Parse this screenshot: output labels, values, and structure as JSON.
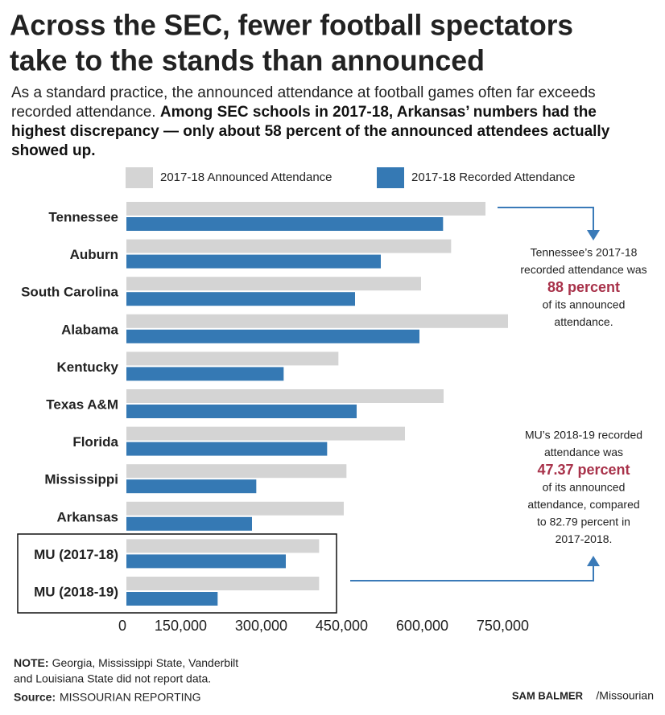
{
  "chart_data": {
    "type": "barh",
    "title": [
      "Across the SEC, fewer football spectators",
      "take to the stands than announced"
    ],
    "subtitle": "As a standard practice, the announced attendance at football games often far exceeds recorded attendance.",
    "subtitle_bold": "Among SEC schools in 2017-18, Arkansas’ numbers had the highest discrepancy — only about 58 percent of the announced attendees actually showed up.",
    "categories": [
      "Tennessee",
      "Auburn",
      "South Carolina",
      "Alabama",
      "Kentucky",
      "Texas A&M",
      "Florida",
      "Mississippi",
      "Arkansas",
      "MU (2017-18)",
      "MU (2018-19)"
    ],
    "series": [
      {
        "name": "2017-18 Announced Attendance",
        "color": "#d4d4d4",
        "values": [
          669000,
          605000,
          549000,
          711000,
          395000,
          591000,
          519000,
          410000,
          405000,
          359000,
          359000
        ]
      },
      {
        "name": "2017-18 Recorded Attendance",
        "color": "#3579b4",
        "values": [
          590000,
          474000,
          426000,
          546000,
          293000,
          429000,
          374000,
          242000,
          234000,
          297000,
          170000
        ]
      }
    ],
    "xlim": [
      0,
      750000
    ],
    "xticks": [
      0,
      {
        "value": 150000,
        "label": "150,000"
      },
      {
        "value": 300000,
        "label": "300,000"
      },
      {
        "value": 450000,
        "label": "450,000"
      },
      {
        "value": 600000,
        "label": "600,000"
      },
      {
        "value": 750000,
        "label": "750,000"
      }
    ],
    "grid": false,
    "annotations": [
      {
        "before": [
          "Tennessee’s 2017-18",
          "recorded attendance was"
        ],
        "highlight": "88 percent",
        "after": [
          "of its announced",
          "attendance."
        ]
      },
      {
        "before": [
          "MU’s 2018-19 recorded",
          "attendance was"
        ],
        "highlight": "47.37 percent",
        "after": [
          "of its announced",
          "attendance, compared",
          "to 82.79 percent in",
          "2017-2018."
        ]
      }
    ],
    "note_label": "NOTE:",
    "note": [
      "Georgia, Mississippi State, Vanderbilt",
      "and Louisiana State did not report data."
    ],
    "source_label": "Source:",
    "source": "MISSOURIAN REPORTING",
    "credit_name": "SAM BALMER",
    "credit_org": "/Missourian"
  }
}
